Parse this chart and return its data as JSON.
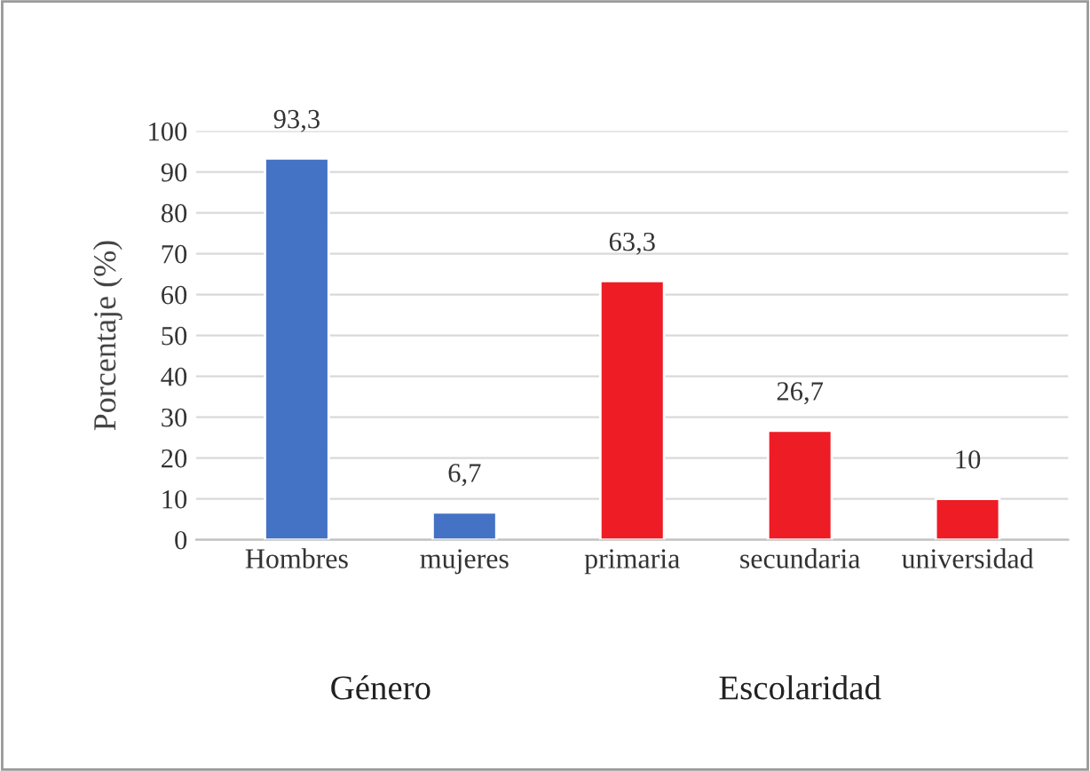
{
  "chart_data": {
    "type": "bar",
    "ylabel": "Porcentaje (%)",
    "categories": [
      "Hombres",
      "mujeres",
      "primaria",
      "secundaria",
      "universidad"
    ],
    "values": [
      93.3,
      6.7,
      63.3,
      26.7,
      10
    ],
    "colors": [
      "#4472c4",
      "#4472c4",
      "#ee1c25",
      "#ee1c25",
      "#ee1c25"
    ],
    "value_labels": [
      "93,3",
      "6,7",
      "63,3",
      "26,7",
      "10"
    ],
    "ylim": [
      0,
      100
    ],
    "yticks": [
      0,
      10,
      20,
      30,
      40,
      50,
      60,
      70,
      80,
      90,
      100
    ],
    "grid": "y",
    "annotations": [
      "Género",
      "Escolaridad"
    ]
  }
}
